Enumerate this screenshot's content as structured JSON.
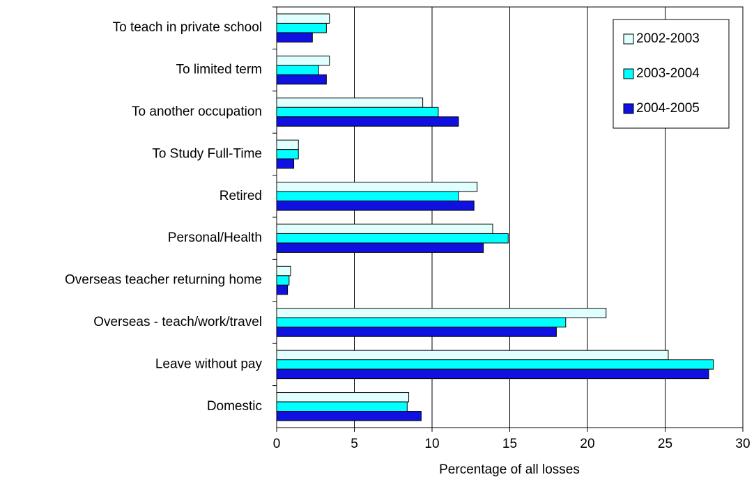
{
  "chart_data": {
    "type": "hbar",
    "xlabel": "Percentage of all losses",
    "categories": [
      "To teach in private school",
      "To limited term",
      "To another occupation",
      "To Study Full-Time",
      "Retired",
      "Personal/Health",
      "Overseas teacher returning home",
      "Overseas - teach/work/travel",
      "Leave without pay",
      "Domestic"
    ],
    "series": [
      {
        "name": "2002-2003",
        "color": "#e0ffff",
        "values": [
          3.4,
          3.4,
          9.4,
          1.4,
          12.9,
          13.9,
          0.9,
          21.2,
          25.2,
          8.5
        ]
      },
      {
        "name": "2003-2004",
        "color": "#00ffff",
        "values": [
          3.2,
          2.7,
          10.4,
          1.4,
          11.7,
          14.9,
          0.8,
          18.6,
          28.1,
          8.4
        ]
      },
      {
        "name": "2004-2005",
        "color": "#1010e0",
        "values": [
          2.3,
          3.2,
          11.7,
          1.1,
          12.7,
          13.3,
          0.7,
          18.0,
          27.8,
          9.3
        ]
      }
    ],
    "xlim": [
      0,
      30
    ],
    "xticks": [
      0,
      5,
      10,
      15,
      20,
      25,
      30
    ],
    "grid": true,
    "legend": "upper right"
  }
}
